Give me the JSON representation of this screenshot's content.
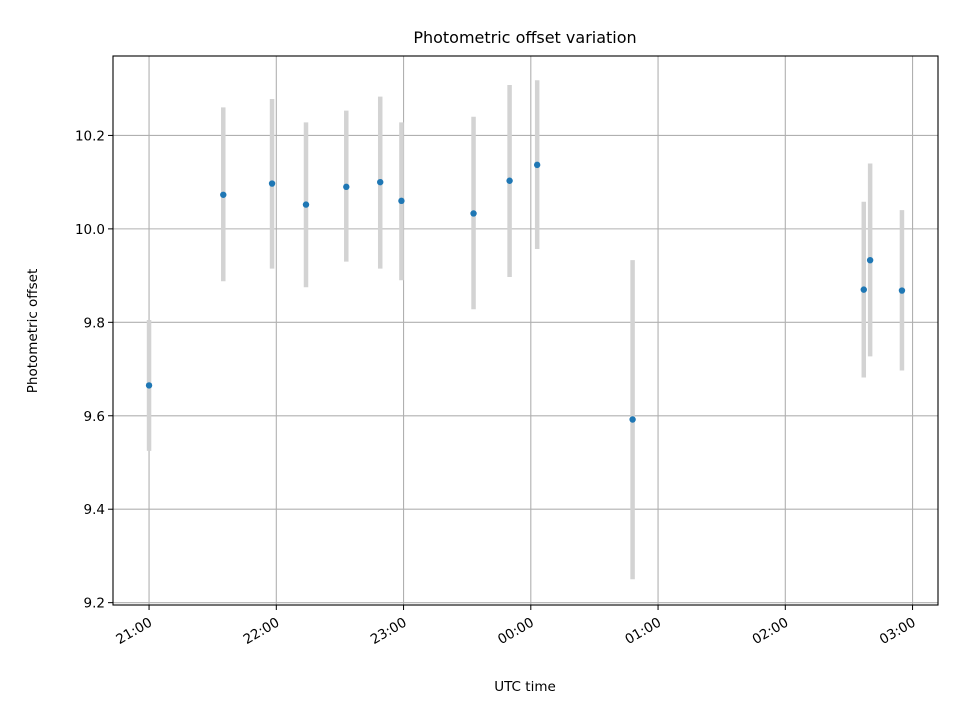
{
  "chart_data": {
    "type": "scatter",
    "title": "Photometric offset variation",
    "xlabel": "UTC time",
    "ylabel": "Photometric offset",
    "x_ticks": [
      "21:00",
      "22:00",
      "23:00",
      "00:00",
      "01:00",
      "02:00",
      "03:00"
    ],
    "x_tick_minutes": [
      0,
      60,
      120,
      180,
      240,
      300,
      360
    ],
    "xlim_minutes": [
      -17,
      372
    ],
    "y_ticks": [
      "9.2",
      "9.4",
      "9.6",
      "9.8",
      "10.0",
      "10.2"
    ],
    "y_tick_values": [
      9.2,
      9.4,
      9.6,
      9.8,
      10.0,
      10.2
    ],
    "ylim": [
      9.195,
      10.37
    ],
    "grid": true,
    "point_color": "#1f77b4",
    "errorbar_color": "#d3d3d3",
    "points": [
      {
        "t": "21:00",
        "m": 0,
        "y": 9.665,
        "lo": 9.525,
        "hi": 9.805
      },
      {
        "t": "21:35",
        "m": 35,
        "y": 10.073,
        "lo": 9.888,
        "hi": 10.26
      },
      {
        "t": "21:58",
        "m": 58,
        "y": 10.097,
        "lo": 9.915,
        "hi": 10.278
      },
      {
        "t": "22:14",
        "m": 74,
        "y": 10.052,
        "lo": 9.875,
        "hi": 10.228
      },
      {
        "t": "22:33",
        "m": 93,
        "y": 10.09,
        "lo": 9.93,
        "hi": 10.253
      },
      {
        "t": "22:49",
        "m": 109,
        "y": 10.1,
        "lo": 9.915,
        "hi": 10.283
      },
      {
        "t": "22:59",
        "m": 119,
        "y": 10.06,
        "lo": 9.89,
        "hi": 10.228
      },
      {
        "t": "23:33",
        "m": 153,
        "y": 10.033,
        "lo": 9.828,
        "hi": 10.24
      },
      {
        "t": "23:50",
        "m": 170,
        "y": 10.103,
        "lo": 9.897,
        "hi": 10.308
      },
      {
        "t": "00:03",
        "m": 183,
        "y": 10.137,
        "lo": 9.957,
        "hi": 10.318
      },
      {
        "t": "00:48",
        "m": 228,
        "y": 9.592,
        "lo": 9.25,
        "hi": 9.933
      },
      {
        "t": "02:37",
        "m": 337,
        "y": 9.87,
        "lo": 9.682,
        "hi": 10.058
      },
      {
        "t": "02:40",
        "m": 340,
        "y": 9.933,
        "lo": 9.727,
        "hi": 10.14
      },
      {
        "t": "02:55",
        "m": 355,
        "y": 9.868,
        "lo": 9.697,
        "hi": 10.04
      }
    ]
  }
}
